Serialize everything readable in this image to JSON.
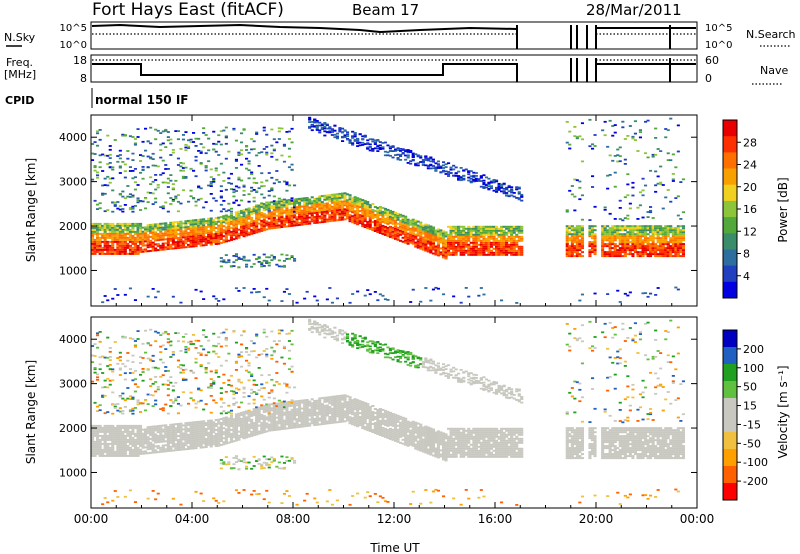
{
  "header": {
    "radar": "Fort Hays East (fitACF)",
    "beam": "Beam 17",
    "date": "28/Mar/2011"
  },
  "noise_panel": {
    "left_label": "N.Sky",
    "left_ticks": [
      "10^5",
      "10^0"
    ],
    "right_ticks": [
      "10^5",
      "10^0"
    ],
    "right_label": "N.Search"
  },
  "freq_panel": {
    "left_label_line1": "Freq.",
    "left_label_line2": "[MHz]",
    "left_ticks": [
      "18",
      "8"
    ],
    "right_ticks": [
      "60",
      "0"
    ],
    "right_label": "Nave"
  },
  "cpid": {
    "label": "CPID",
    "value": "normal 150 IF"
  },
  "colors": {
    "power": [
      "#0000e0",
      "#2040c0",
      "#2e6e9e",
      "#3a8c6a",
      "#52a83a",
      "#8cc43a",
      "#f0d020",
      "#f8a000",
      "#ff7000",
      "#ff3000",
      "#e80000"
    ],
    "velocity": [
      "#ff0000",
      "#ff6000",
      "#ffa000",
      "#f0c040",
      "#c8c8c0",
      "#c8c8c0",
      "#60c040",
      "#20a020",
      "#2060c0",
      "#0000c0"
    ]
  },
  "chart_data": [
    {
      "type": "heatmap",
      "title": "",
      "xlabel": "Time UT",
      "ylabel": "Slant Range [km]",
      "x_ticks": [
        "00:00",
        "04:00",
        "08:00",
        "12:00",
        "16:00",
        "20:00",
        "00:00"
      ],
      "xlim_hours": [
        0,
        24
      ],
      "y_ticks": [
        1000,
        2000,
        3000,
        4000
      ],
      "ylim": [
        200,
        4500
      ],
      "colorbar": {
        "label": "Power [dB]",
        "ticks": [
          4,
          8,
          12,
          16,
          20,
          24,
          28
        ],
        "range": [
          0,
          30
        ]
      },
      "data_gaps_hours": [
        [
          17.0,
          18.7
        ],
        [
          19.5,
          19.7
        ],
        [
          20.0,
          20.2
        ]
      ],
      "features": [
        {
          "name": "main backscatter band",
          "time_hours": [
            0,
            17
          ],
          "center_range_km": [
            1700,
            1650,
            2000,
            2450,
            2000,
            1500,
            1700
          ],
          "strongest_power_db": 28
        },
        {
          "name": "descending streak",
          "time_hours": [
            8.5,
            17
          ],
          "range_km": [
            4300,
            2700
          ]
        },
        {
          "name": "lower patch",
          "time_hours": [
            5,
            8
          ],
          "range_km": [
            1000,
            1400
          ]
        }
      ]
    },
    {
      "type": "heatmap",
      "title": "",
      "xlabel": "Time UT",
      "ylabel": "Slant Range [km]",
      "x_ticks": [
        "00:00",
        "04:00",
        "08:00",
        "12:00",
        "16:00",
        "20:00",
        "00:00"
      ],
      "xlim_hours": [
        0,
        24
      ],
      "y_ticks": [
        1000,
        2000,
        3000,
        4000
      ],
      "ylim": [
        200,
        4500
      ],
      "colorbar": {
        "label": "Velocity [m s⁻¹]",
        "ticks": [
          200,
          100,
          50,
          15,
          -15,
          -50,
          -100,
          -200
        ],
        "range": [
          -250,
          250
        ]
      },
      "features": [
        {
          "name": "ground scatter band",
          "velocity_m_s": [
            -15,
            15
          ]
        },
        {
          "name": "descending streak",
          "time_hours": [
            10,
            13
          ],
          "velocity_m_s": 50
        }
      ]
    }
  ]
}
